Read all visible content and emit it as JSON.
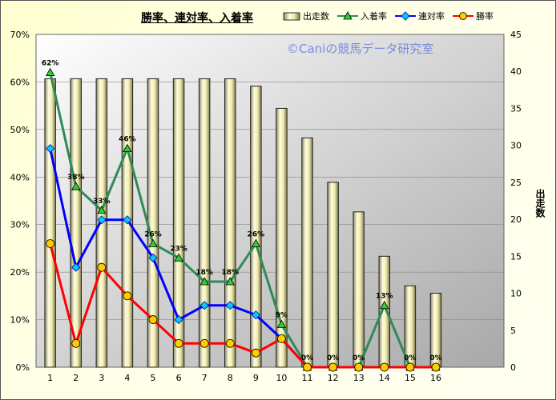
{
  "title": "勝率、連対率、入着率",
  "watermark": "©Caniの競馬データ研究室",
  "legend": {
    "runs": "出走数",
    "show_rate": "入着率",
    "place_rate": "連対率",
    "win_rate": "勝率"
  },
  "y2_title": "出走数",
  "chart_data": {
    "type": "bar+line",
    "categories": [
      "1",
      "2",
      "3",
      "4",
      "5",
      "6",
      "7",
      "8",
      "9",
      "10",
      "11",
      "12",
      "13",
      "14",
      "15",
      "16"
    ],
    "left_axis": {
      "min": 0,
      "max": 70,
      "step": 10,
      "unit": "%"
    },
    "right_axis": {
      "min": 0,
      "max": 45,
      "step": 5
    },
    "bars": {
      "name": "出走数",
      "color": "#f0ecb0",
      "values": [
        39,
        39,
        39,
        39,
        39,
        39,
        39,
        39,
        38,
        35,
        31,
        25,
        21,
        15,
        11,
        10
      ]
    },
    "series": [
      {
        "name": "入着率",
        "color": "#2e8b57",
        "marker_fill": "#33cc33",
        "values": [
          62,
          38,
          33,
          46,
          26,
          23,
          18,
          18,
          26,
          9,
          0,
          0,
          0,
          13,
          0,
          0
        ]
      },
      {
        "name": "連対率",
        "color": "#0000ff",
        "marker_fill": "#00ccff",
        "values": [
          46,
          21,
          31,
          31,
          23,
          10,
          13,
          13,
          11,
          6,
          0,
          0,
          0,
          0,
          0,
          0
        ]
      },
      {
        "name": "勝率",
        "color": "#ff0000",
        "marker_fill": "#ffcc00",
        "values": [
          26,
          5,
          21,
          15,
          10,
          5,
          5,
          5,
          3,
          6,
          0,
          0,
          0,
          0,
          0,
          0
        ]
      }
    ],
    "data_labels": [
      "62%",
      "38%",
      "33%",
      "46%",
      "26%",
      "23%",
      "18%",
      "18%",
      "26%",
      "9%",
      "0%",
      "0%",
      "0%",
      "13%",
      "0%",
      "0%"
    ],
    "grid": true
  }
}
